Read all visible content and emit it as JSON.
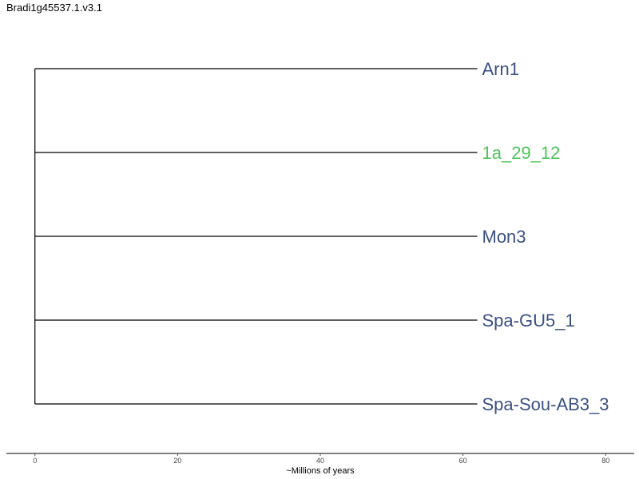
{
  "title": "Bradi1g45537.1.v3.1",
  "chart_data": {
    "type": "dendrogram",
    "root_x": 0,
    "leaves": [
      {
        "name": "Arn1",
        "branch_end": 62,
        "color": "#3b5083"
      },
      {
        "name": "1a_29_12",
        "branch_end": 62,
        "color": "#4ec45a"
      },
      {
        "name": "Mon3",
        "branch_end": 62,
        "color": "#3b5083"
      },
      {
        "name": "Spa-GU5_1",
        "branch_end": 62,
        "color": "#3b5083"
      },
      {
        "name": "Spa-Sou-AB3_3",
        "branch_end": 62,
        "color": "#3b5083"
      }
    ],
    "x_axis": {
      "label": "~Millions of years",
      "ticks": [
        0,
        20,
        40,
        60,
        80
      ],
      "range": [
        -4,
        84
      ]
    }
  }
}
